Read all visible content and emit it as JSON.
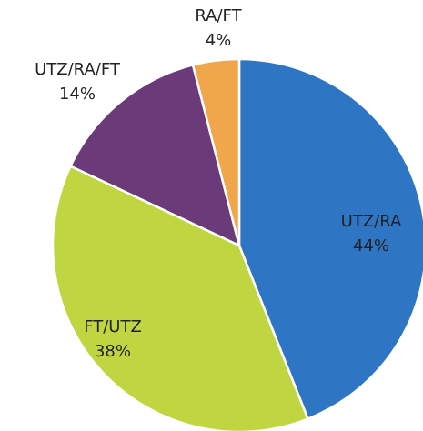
{
  "chart_data": {
    "type": "pie",
    "categories": [
      "UTZ/RA",
      "FT/UTZ",
      "UTZ/RA/FT",
      "RA/FT"
    ],
    "values": [
      44,
      38,
      14,
      4
    ],
    "value_labels": [
      "44%",
      "38%",
      "14%",
      "4%"
    ],
    "colors": [
      "#2e75c3",
      "#bfd640",
      "#6b3a78",
      "#f0a64a"
    ]
  }
}
